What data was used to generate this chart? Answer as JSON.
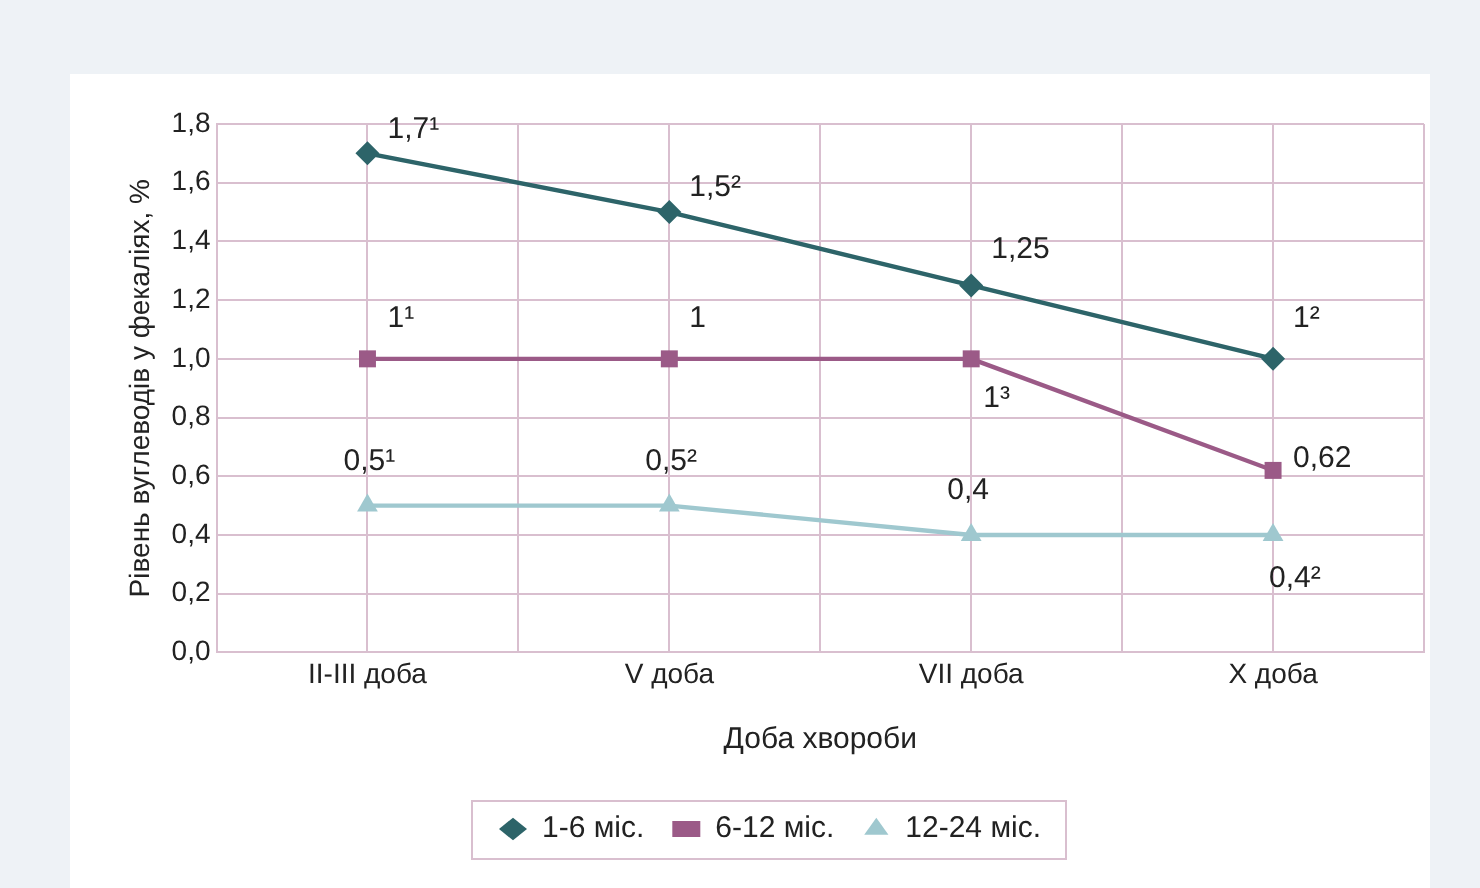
{
  "chart_data": {
    "type": "line",
    "xlabel": "Доба хвороби",
    "ylabel": "Рівень вуглеводів у фекаліях, %",
    "categories": [
      "II-III доба",
      "V доба",
      "VII доба",
      "X доба"
    ],
    "series": [
      {
        "name": "1-6 міс.",
        "color": "#2d6469",
        "marker": "diamond",
        "values": [
          1.7,
          1.5,
          1.25,
          1
        ],
        "value_labels": [
          "1,7¹",
          "1,5²",
          "1,25",
          "1²"
        ]
      },
      {
        "name": "6-12 міс.",
        "color": "#9b5a87",
        "marker": "square",
        "values": [
          1,
          1,
          1,
          0.62
        ],
        "value_labels": [
          "1¹",
          "1",
          "1³",
          "0,62"
        ]
      },
      {
        "name": "12-24 міс.",
        "color": "#9fc8cf",
        "marker": "triangle",
        "values": [
          0.5,
          0.5,
          0.4,
          0.4
        ],
        "value_labels": [
          "0,5¹",
          "0,5²",
          "0,4",
          "0,4²"
        ]
      }
    ],
    "ylim": [
      0,
      1.8
    ],
    "yticks": [
      {
        "value": 0,
        "label": "0,0"
      },
      {
        "value": 0.2,
        "label": "0,2"
      },
      {
        "value": 0.4,
        "label": "0,4"
      },
      {
        "value": 0.6,
        "label": "0,6"
      },
      {
        "value": 0.8,
        "label": "0,8"
      },
      {
        "value": 1,
        "label": "1,0"
      },
      {
        "value": 1.2,
        "label": "1,2"
      },
      {
        "value": 1.4,
        "label": "1,4"
      },
      {
        "value": 1.6,
        "label": "1,6"
      },
      {
        "value": 1.8,
        "label": "1,8"
      }
    ],
    "grid": true,
    "legend": "bottom",
    "line_style": "solid"
  }
}
